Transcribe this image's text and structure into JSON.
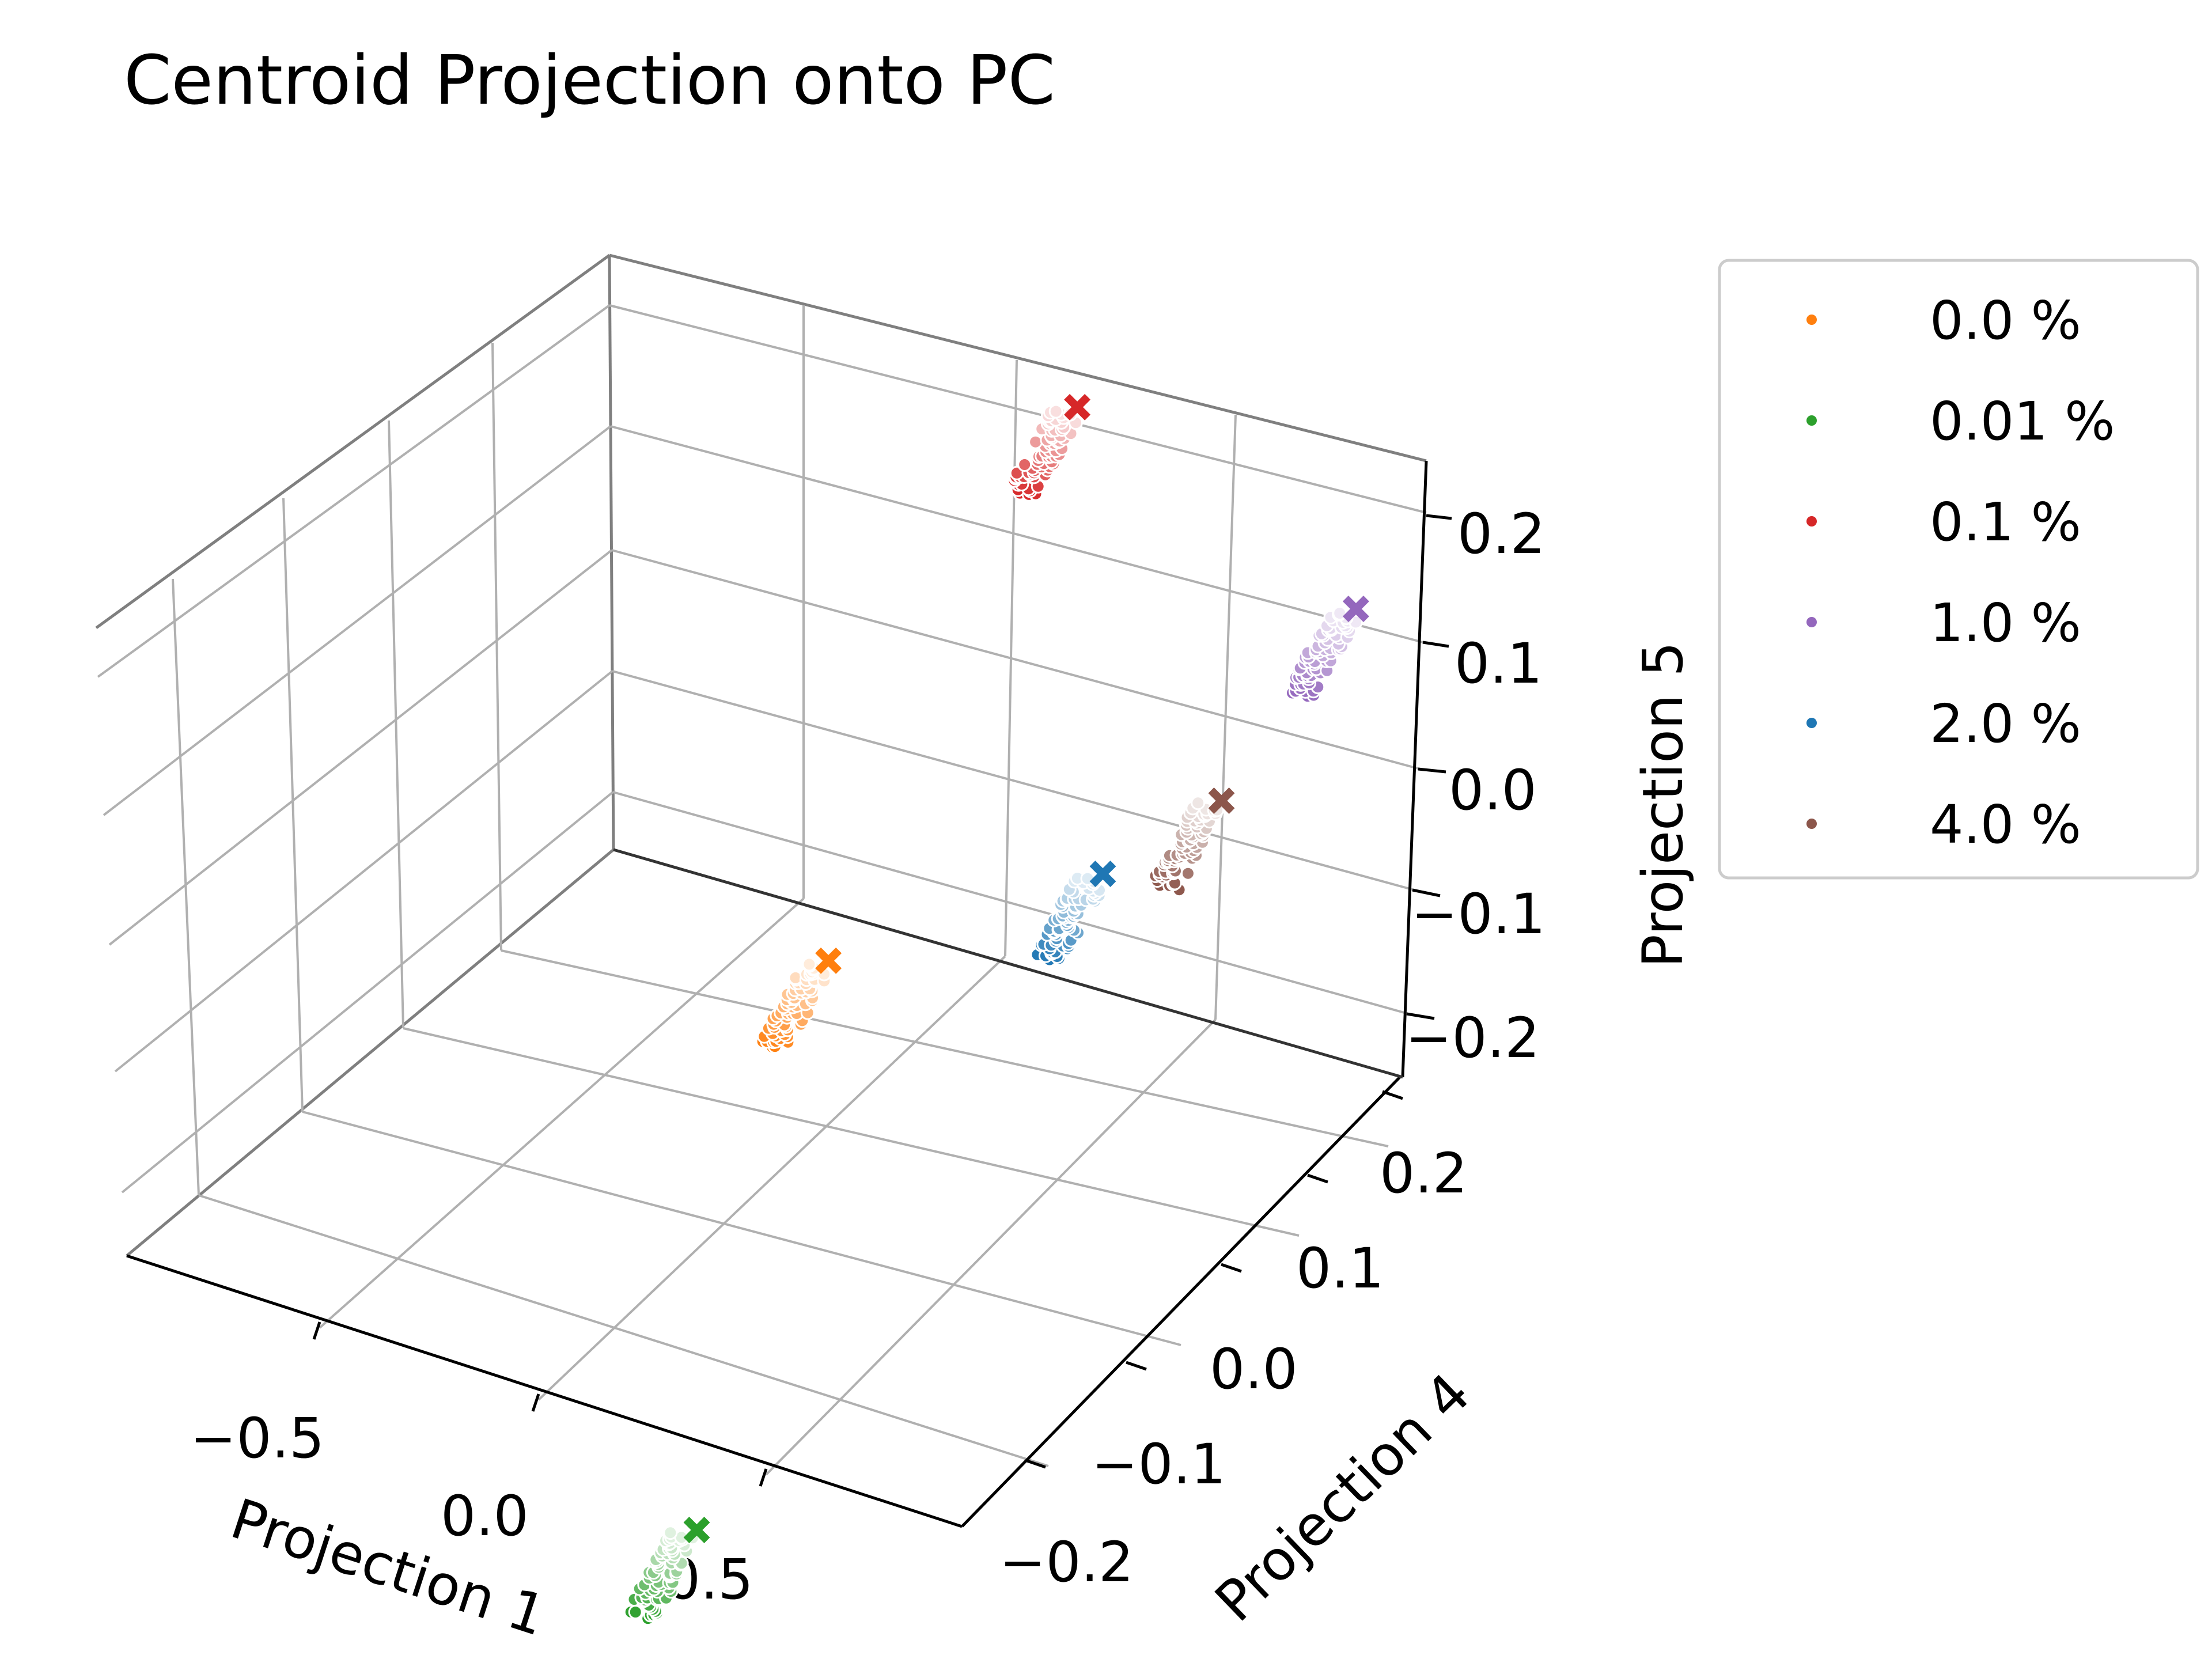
{
  "chart_data": {
    "type": "scatter",
    "title": "Centroid Projection onto PC",
    "xlabel": "Projection 1",
    "ylabel": "Projection 4",
    "zlabel": "Projection 5",
    "x_ticks": [
      "−0.5",
      "0.0",
      "0.5"
    ],
    "y_ticks": [
      "−0.2",
      "−0.1",
      "0.0",
      "0.1",
      "0.2"
    ],
    "z_ticks": [
      "−0.2",
      "−0.1",
      "0.0",
      "0.1",
      "0.2"
    ],
    "legend_position": "right, outside",
    "series": [
      {
        "name": "0.0 %",
        "color": "#ff7f0e",
        "x": -0.78,
        "y": 0.18,
        "z": -0.17
      },
      {
        "name": "0.01 %",
        "color": "#2ca02c",
        "x": 0.15,
        "y": -0.15,
        "z": -0.2
      },
      {
        "name": "0.1 %",
        "color": "#d62728",
        "x": -0.18,
        "y": 0.12,
        "z": 0.18
      },
      {
        "name": "1.0 %",
        "color": "#9467bd",
        "x": 0.55,
        "y": 0.05,
        "z": 0.17
      },
      {
        "name": "2.0 %",
        "color": "#1f77b4",
        "x": 0.3,
        "y": 0.0,
        "z": 0.05
      },
      {
        "name": "4.0 %",
        "color": "#8c564b",
        "x": 0.5,
        "y": 0.0,
        "z": 0.1
      }
    ]
  }
}
